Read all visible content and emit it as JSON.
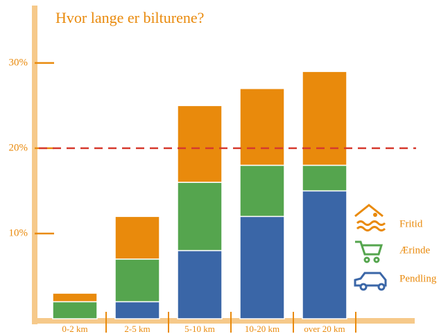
{
  "chart_data": {
    "type": "stacked_bar",
    "title": "Hvor lange er bilturene?",
    "categories": [
      "0-2 km",
      "2-5 km",
      "5-10 km",
      "10-20 km",
      "over 20 km"
    ],
    "series": [
      {
        "name": "Pendling",
        "color": "#3a66a7",
        "values": [
          0,
          2,
          8,
          12,
          15
        ]
      },
      {
        "name": "Ærinde",
        "color": "#55a54e",
        "values": [
          2,
          5,
          8,
          6,
          3
        ]
      },
      {
        "name": "Fritid",
        "color": "#e98a0c",
        "values": [
          1,
          5,
          9,
          9,
          11
        ]
      }
    ],
    "ylim": [
      0,
      36
    ],
    "yticks": [
      {
        "value": 10,
        "label": "10%"
      },
      {
        "value": 20,
        "label": "20%"
      },
      {
        "value": 30,
        "label": "30%"
      }
    ],
    "reference_line": 20,
    "reference_color": "#d63a2f"
  }
}
